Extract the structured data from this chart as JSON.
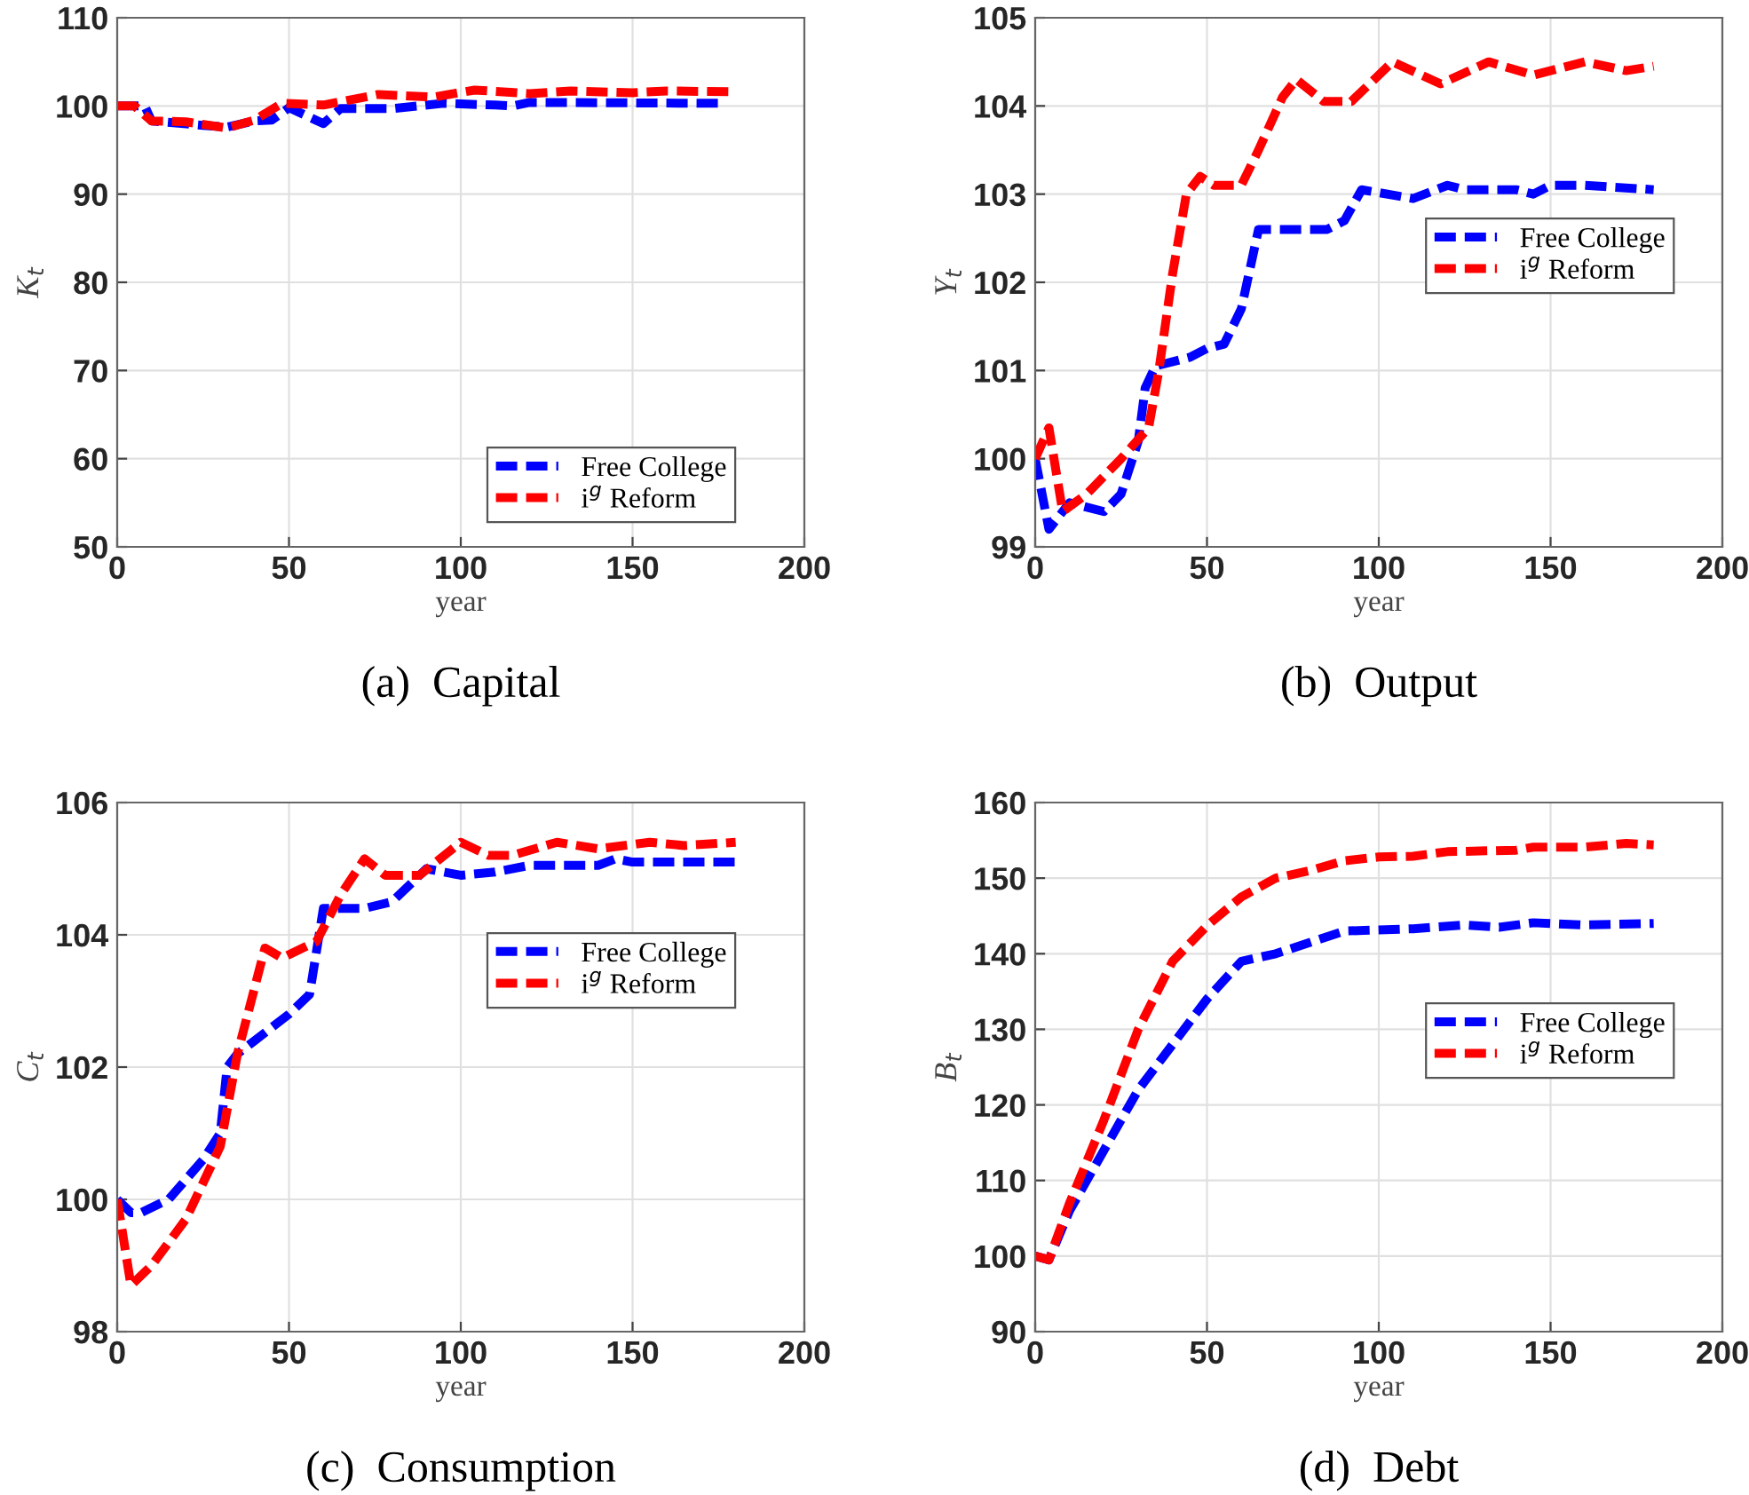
{
  "chart_data": [
    {
      "type": "line",
      "title": "(a)  Capital",
      "xlabel": "year",
      "ylabel": "K$_{t}$",
      "xlim": [
        0,
        200
      ],
      "xticks": [
        0,
        50,
        100,
        150,
        200
      ],
      "ylim": [
        50,
        110
      ],
      "yticks": [
        50,
        60,
        70,
        80,
        90,
        100,
        110
      ],
      "grid": true,
      "legend": "bottom right",
      "line_style": "dashed",
      "marker": "none",
      "series": [
        {
          "name": "Free College",
          "color": "#0000ff",
          "x": [
            0,
            8,
            10,
            25,
            32,
            40,
            45,
            50,
            60,
            65,
            80,
            95,
            110,
            115,
            120,
            175
          ],
          "values": [
            100,
            100,
            98.3,
            97.8,
            97.6,
            98.3,
            98.4,
            99.8,
            98.0,
            99.7,
            99.7,
            100.3,
            100.1,
            100.0,
            100.4,
            100.3
          ]
        },
        {
          "name": "i$^{g}$ Reform",
          "color": "#ff0000",
          "x": [
            0,
            5,
            10,
            20,
            32,
            40,
            48,
            60,
            76,
            92,
            104,
            120,
            132,
            150,
            160,
            180
          ],
          "values": [
            100,
            100,
            98.3,
            98.2,
            97.5,
            98.4,
            100.3,
            100.1,
            101.3,
            101.0,
            101.8,
            101.4,
            101.7,
            101.5,
            101.7,
            101.6
          ]
        }
      ]
    },
    {
      "type": "line",
      "title": "(b)  Output",
      "xlabel": "year",
      "ylabel": "Y$_{t}$",
      "xlim": [
        0,
        200
      ],
      "xticks": [
        0,
        50,
        100,
        150,
        200
      ],
      "ylim": [
        99,
        105
      ],
      "yticks": [
        99,
        100,
        101,
        102,
        103,
        104,
        105
      ],
      "grid": true,
      "legend": "right",
      "line_style": "dashed",
      "marker": "none",
      "series": [
        {
          "name": "Free College",
          "color": "#0000ff",
          "x": [
            0,
            4,
            10,
            20,
            25,
            30,
            32,
            35,
            45,
            50,
            55,
            60,
            65,
            75,
            85,
            90,
            95,
            110,
            120,
            125,
            140,
            145,
            150,
            160,
            180
          ],
          "values": [
            100,
            99.2,
            99.5,
            99.4,
            99.6,
            100.2,
            100.8,
            101.05,
            101.15,
            101.25,
            101.3,
            101.7,
            102.6,
            102.6,
            102.6,
            102.7,
            103.05,
            102.95,
            103.1,
            103.05,
            103.05,
            103.0,
            103.1,
            103.1,
            103.05
          ]
        },
        {
          "name": "i$^{g}$ Reform",
          "color": "#ff0000",
          "x": [
            0,
            4,
            8,
            15,
            25,
            33,
            36,
            40,
            44,
            48,
            52,
            60,
            65,
            72,
            76,
            84,
            92,
            104,
            118,
            132,
            145,
            160,
            172,
            180
          ],
          "values": [
            100,
            100.35,
            99.4,
            99.6,
            100.0,
            100.35,
            101.0,
            102.1,
            103.0,
            103.2,
            103.1,
            103.1,
            103.5,
            104.1,
            104.3,
            104.05,
            104.05,
            104.5,
            104.25,
            104.5,
            104.35,
            104.5,
            104.4,
            104.45
          ]
        }
      ]
    },
    {
      "type": "line",
      "title": "(c)  Consumption",
      "xlabel": "year",
      "ylabel": "C$_{t}$",
      "xlim": [
        0,
        200
      ],
      "xticks": [
        0,
        50,
        100,
        150,
        200
      ],
      "ylim": [
        98,
        106
      ],
      "yticks": [
        98,
        100,
        102,
        104,
        106
      ],
      "grid": true,
      "legend": "top right",
      "line_style": "dashed",
      "marker": "none",
      "series": [
        {
          "name": "Free College",
          "color": "#0000ff",
          "x": [
            0,
            4,
            7,
            15,
            25,
            30,
            32,
            35,
            40,
            50,
            56,
            60,
            72,
            80,
            88,
            90,
            100,
            110,
            120,
            140,
            145,
            150,
            180
          ],
          "values": [
            100,
            99.8,
            99.8,
            100.0,
            100.6,
            101.0,
            102.0,
            102.2,
            102.4,
            102.8,
            103.1,
            104.4,
            104.4,
            104.5,
            104.9,
            105.0,
            104.9,
            104.95,
            105.05,
            105.05,
            105.15,
            105.1,
            105.1
          ]
        },
        {
          "name": "i$^{g}$ Reform",
          "color": "#ff0000",
          "x": [
            0,
            4,
            10,
            20,
            30,
            35,
            43,
            48,
            58,
            65,
            72,
            78,
            88,
            100,
            108,
            115,
            128,
            140,
            155,
            165,
            180
          ],
          "values": [
            100,
            98.7,
            99.0,
            99.7,
            100.8,
            102.2,
            103.8,
            103.65,
            103.9,
            104.6,
            105.15,
            104.9,
            104.9,
            105.4,
            105.2,
            105.2,
            105.4,
            105.3,
            105.4,
            105.35,
            105.4
          ]
        }
      ]
    },
    {
      "type": "line",
      "title": "(d)  Debt",
      "xlabel": "year",
      "ylabel": "B$_{t}$",
      "xlim": [
        0,
        200
      ],
      "xticks": [
        0,
        50,
        100,
        150,
        200
      ],
      "ylim": [
        90,
        160
      ],
      "yticks": [
        90,
        100,
        110,
        120,
        130,
        140,
        150,
        160
      ],
      "grid": true,
      "legend": "right",
      "line_style": "dashed",
      "marker": "none",
      "series": [
        {
          "name": "Free College",
          "color": "#0000ff",
          "x": [
            0,
            4,
            10,
            20,
            30,
            40,
            50,
            60,
            70,
            80,
            90,
            110,
            125,
            135,
            145,
            160,
            180
          ],
          "values": [
            100,
            99.5,
            106,
            114,
            122,
            128,
            134,
            139,
            140,
            141.5,
            143,
            143.3,
            143.8,
            143.5,
            144.1,
            143.8,
            144.0
          ]
        },
        {
          "name": "i$^{g}$ Reform",
          "color": "#ff0000",
          "x": [
            0,
            4,
            10,
            20,
            30,
            40,
            50,
            60,
            70,
            80,
            90,
            100,
            110,
            120,
            140,
            145,
            160,
            172,
            180
          ],
          "values": [
            100,
            99.5,
            107,
            118,
            130,
            139,
            143.7,
            147.5,
            150,
            151,
            152.3,
            152.8,
            152.9,
            153.5,
            153.7,
            154.1,
            154.1,
            154.6,
            154.4
          ]
        }
      ]
    }
  ]
}
